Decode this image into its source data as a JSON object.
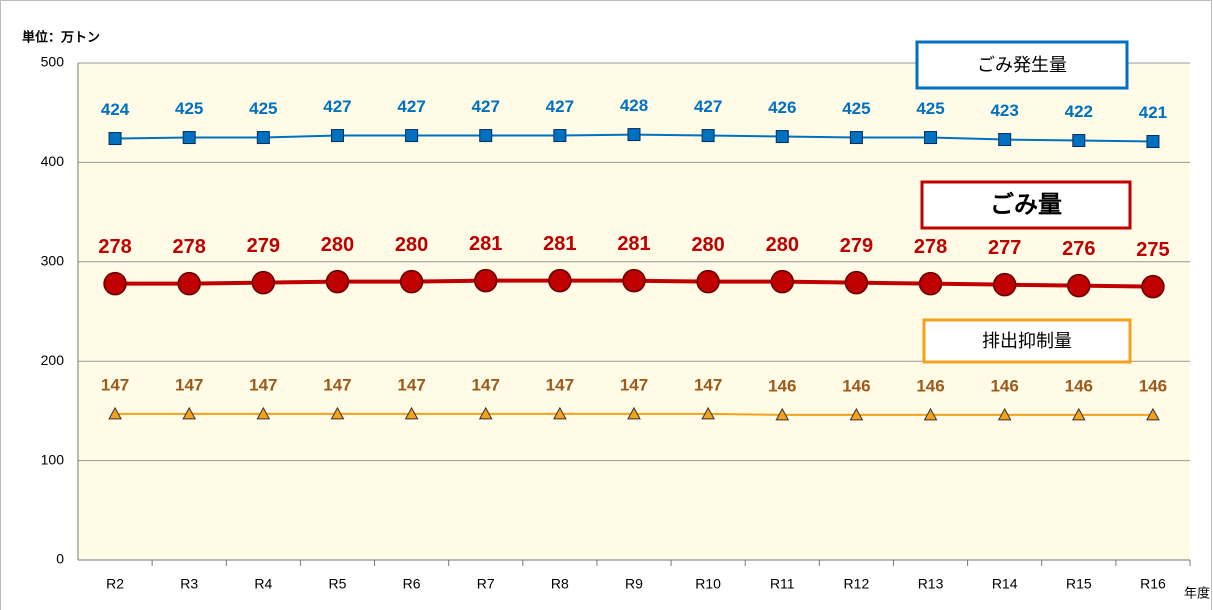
{
  "chart_data": {
    "type": "line",
    "unit_label": "単位：万トン",
    "x_label": "年度",
    "categories": [
      "R2",
      "R3",
      "R4",
      "R5",
      "R6",
      "R7",
      "R8",
      "R9",
      "R10",
      "R11",
      "R12",
      "R13",
      "R14",
      "R15",
      "R16"
    ],
    "series": [
      {
        "name": "ごみ発生量",
        "color": "#0070c0",
        "label_color": "#0070c0",
        "marker": "square",
        "values": [
          424,
          425,
          425,
          427,
          427,
          427,
          427,
          428,
          427,
          426,
          425,
          425,
          423,
          422,
          421
        ]
      },
      {
        "name": "ごみ量",
        "color": "#c00000",
        "label_color": "#c00000",
        "marker": "circle",
        "values": [
          278,
          278,
          279,
          280,
          280,
          281,
          281,
          281,
          280,
          280,
          279,
          278,
          277,
          276,
          275
        ]
      },
      {
        "name": "排出抑制量",
        "color": "#f5a11c",
        "label_color": "#9c5a1c",
        "marker": "triangle",
        "values": [
          147,
          147,
          147,
          147,
          147,
          147,
          147,
          147,
          147,
          146,
          146,
          146,
          146,
          146,
          146
        ]
      }
    ],
    "ylim": [
      0,
      500
    ],
    "yticks": [
      0,
      100,
      200,
      300,
      400,
      500
    ],
    "grid": true
  }
}
